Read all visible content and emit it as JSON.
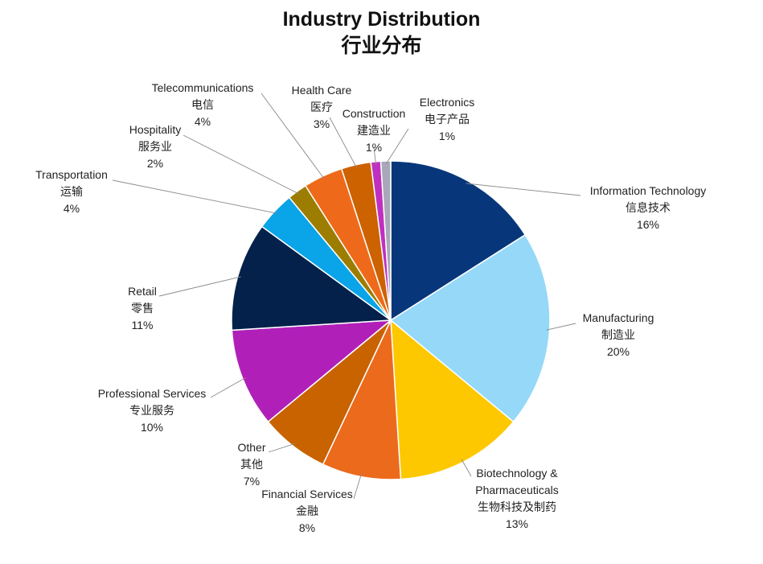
{
  "chart_data": {
    "type": "pie",
    "title": "Industry Distribution",
    "subtitle": "行业分布",
    "slices": [
      {
        "en": "Information Technology",
        "zh": "信息技术",
        "pct": "16%",
        "value": 16,
        "color": "#08367a"
      },
      {
        "en": "Manufacturing",
        "zh": "制造业",
        "pct": "20%",
        "value": 20,
        "color": "#95d8f8"
      },
      {
        "en": "Biotechnology & Pharmaceuticals",
        "zh": "生物科技及制药",
        "pct": "13%",
        "value": 13,
        "color": "#fdc800"
      },
      {
        "en": "Financial Services",
        "zh": "金融",
        "pct": "8%",
        "value": 8,
        "color": "#ec6a1c"
      },
      {
        "en": "Other",
        "zh": "其他",
        "pct": "7%",
        "value": 7,
        "color": "#c86300"
      },
      {
        "en": "Professional Services",
        "zh": "专业服务",
        "pct": "10%",
        "value": 10,
        "color": "#b020b8"
      },
      {
        "en": "Retail",
        "zh": "零售",
        "pct": "11%",
        "value": 11,
        "color": "#03214a"
      },
      {
        "en": "Transportation",
        "zh": "运输",
        "pct": "4%",
        "value": 4,
        "color": "#0aa4e8"
      },
      {
        "en": "Hospitality",
        "zh": "服务业",
        "pct": "2%",
        "value": 2,
        "color": "#9c7d00"
      },
      {
        "en": "Telecommunications",
        "zh": "电信",
        "pct": "4%",
        "value": 4,
        "color": "#ee6a1a"
      },
      {
        "en": "Health Care",
        "zh": "医疗",
        "pct": "3%",
        "value": 3,
        "color": "#cc6200"
      },
      {
        "en": "Construction",
        "zh": "建造业",
        "pct": "1%",
        "value": 1,
        "color": "#c030c0"
      },
      {
        "en": "Electronics",
        "zh": "电子产品",
        "pct": "1%",
        "value": 1,
        "color": "#a8a8b8"
      }
    ]
  }
}
